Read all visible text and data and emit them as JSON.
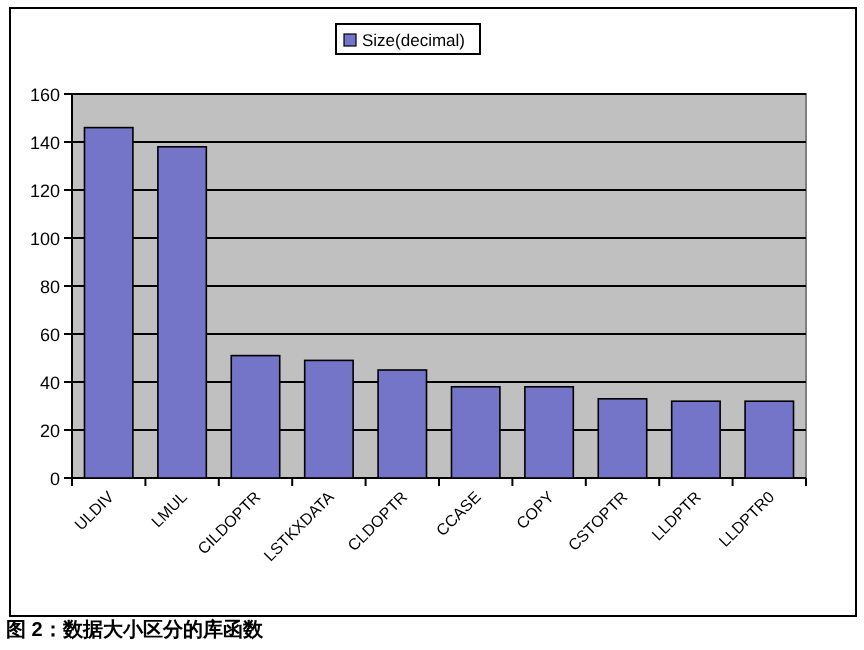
{
  "chart_data": {
    "type": "bar",
    "categories": [
      "ULDIV",
      "LMUL",
      "CILDOPTR",
      "LSTKXDATA",
      "CLDOPTR",
      "CCASE",
      "COPY",
      "CSTOPTR",
      "LLDPTR",
      "LLDPTR0"
    ],
    "series": [
      {
        "name": "Size(decimal)",
        "color": "#7474c8",
        "values": [
          146,
          138,
          51,
          49,
          45,
          38,
          38,
          33,
          32,
          32
        ]
      }
    ],
    "ylim": [
      0,
      160
    ],
    "yticks": [
      0,
      20,
      40,
      60,
      80,
      100,
      120,
      140,
      160
    ],
    "grid": "y",
    "legend": "top",
    "annotations": [
      "图 2：数据大小区分的库函数"
    ]
  }
}
